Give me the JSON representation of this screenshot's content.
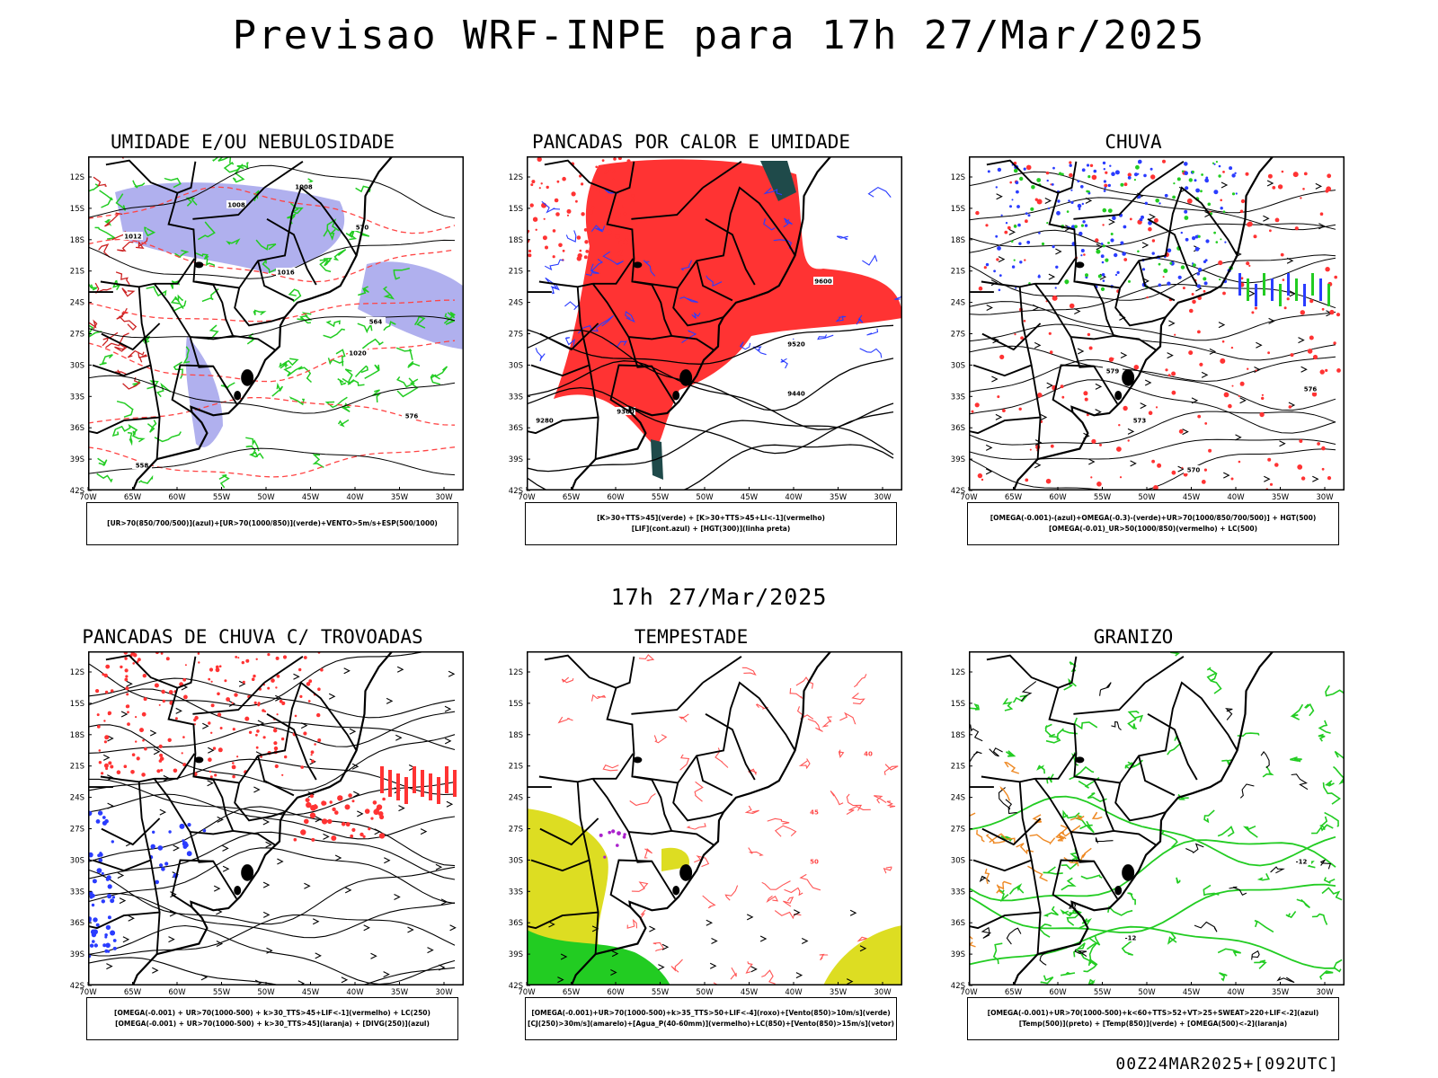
{
  "header": {
    "title": "Previsao WRF-INPE  para 17h 27/Mar/2025"
  },
  "subtitle": "17h 27/Mar/2025",
  "footer": "00Z24MAR2025+[092UTC]",
  "axes": {
    "lat_labels": [
      "12S",
      "15S",
      "18S",
      "21S",
      "24S",
      "27S",
      "30S",
      "33S",
      "36S",
      "39S",
      "42S"
    ],
    "lon_labels": [
      "70W",
      "65W",
      "60W",
      "55W",
      "50W",
      "45W",
      "40W",
      "35W",
      "30W"
    ]
  },
  "panels": [
    {
      "id": "umidade",
      "title": "UMIDADE E/OU NEBULOSIDADE",
      "legend": [
        "[UR>70(850/700/500)](azul)+[UR>70(1000/850)](verde)+VENTO>5m/s+ESP(500/1000)"
      ],
      "contours": [
        "1008",
        "1008",
        "1012",
        "1016",
        "1020",
        "576",
        "570",
        "564",
        "558"
      ]
    },
    {
      "id": "pancadas-calor",
      "title": "PANCADAS POR CALOR E UMIDADE",
      "legend": [
        "[K>30+TTS>45](verde)  +  [K>30+TTS>45+LI<-1](vermelho)",
        "[LIF](cont.azul)  +  [HGT(300)](linha preta)"
      ],
      "contours": [
        "9600",
        "9520",
        "9440",
        "9360",
        "9280"
      ]
    },
    {
      "id": "chuva",
      "title": "CHUVA",
      "legend": [
        "[OMEGA(-0.001)-(azul)+OMEGA(-0.3)-(verde)+UR>70(1000/850/700/500)]  +  HGT(500)",
        "[OMEGA(-0.01)_UR>50(1000/850)(vermelho)  +  LC(500)"
      ],
      "contours": [
        "579",
        "576",
        "573",
        "570"
      ]
    },
    {
      "id": "pancadas-trovoadas",
      "title": "PANCADAS DE CHUVA C/ TROVOADAS",
      "legend": [
        "[OMEGA(-0.001)  +  UR>70(1000-500)  +  k>30_TTS>45+LIF<-1](vermelho)  +  LC(250)",
        "[OMEGA(-0.001)  +  UR>70(1000-500)  +  k>30_TTS>45](laranja)  +  [DIVG(250)](azul)"
      ],
      "contours": []
    },
    {
      "id": "tempestade",
      "title": "TEMPESTADE",
      "legend": [
        "[OMEGA(-0.001)+UR>70(1000-500)+k>35_TTS>50+LIF<-4](roxo)+[Vento(850)>10m/s](verde)",
        "[CJ(250)>30m/s](amarelo)+[Agua_P(40-60mm)](vermelho)+LC(850)+[Vento(850)>15m/s](vetor)"
      ],
      "contours": [
        "40",
        "45",
        "50"
      ]
    },
    {
      "id": "granizo",
      "title": "GRANIZO",
      "legend": [
        "[OMEGA(-0.001)+UR>70(1000-500)+k<60+TTS>52+VT>25+SWEAT>220+LIF<-2](azul)",
        "[Temp(500)](preto)  +  [Temp(850)](verde)  +  [OMEGA(500)<-2](laranja)"
      ],
      "contours": [
        "-12",
        "12",
        "-12"
      ]
    }
  ],
  "colors": {
    "blue": "#2a3cff",
    "green": "#22cc22",
    "red": "#ff3333",
    "lavender": "#b0b0ee",
    "yellow": "#dddd22",
    "orange": "#ee8822",
    "darkteal": "#1f4a4a",
    "purple": "#aa22cc"
  }
}
